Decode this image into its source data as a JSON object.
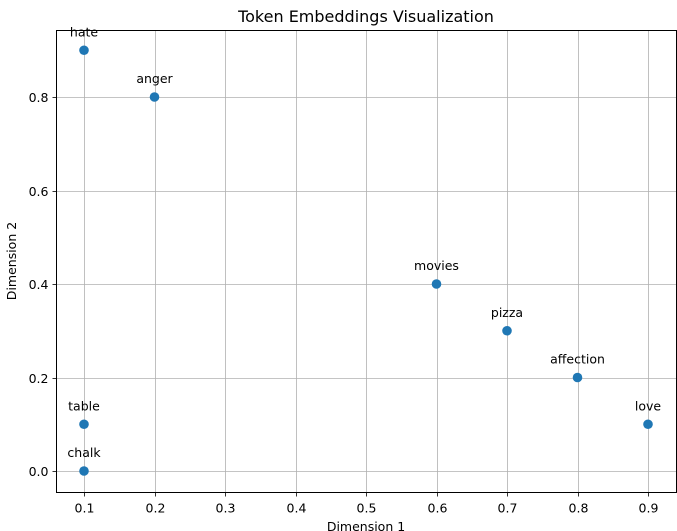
{
  "chart_data": {
    "type": "scatter",
    "title": "Token Embeddings Visualization",
    "xlabel": "Dimension 1",
    "ylabel": "Dimension 2",
    "xlim": [
      0.06,
      0.94
    ],
    "ylim": [
      -0.045,
      0.945
    ],
    "xticks": [
      0.1,
      0.2,
      0.3,
      0.4,
      0.5,
      0.6,
      0.7,
      0.8,
      0.9
    ],
    "yticks": [
      0.0,
      0.2,
      0.4,
      0.6,
      0.8
    ],
    "grid": true,
    "legend": null,
    "marker_color": "#1f77b4",
    "points": [
      {
        "label": "hate",
        "x": 0.1,
        "y": 0.9
      },
      {
        "label": "anger",
        "x": 0.2,
        "y": 0.8
      },
      {
        "label": "movies",
        "x": 0.6,
        "y": 0.4
      },
      {
        "label": "pizza",
        "x": 0.7,
        "y": 0.3
      },
      {
        "label": "affection",
        "x": 0.8,
        "y": 0.2
      },
      {
        "label": "love",
        "x": 0.9,
        "y": 0.1
      },
      {
        "label": "table",
        "x": 0.1,
        "y": 0.1
      },
      {
        "label": "chalk",
        "x": 0.1,
        "y": 0.0
      }
    ]
  }
}
